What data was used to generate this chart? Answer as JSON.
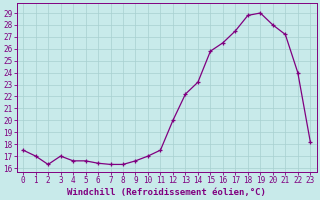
{
  "x": [
    0,
    1,
    2,
    3,
    4,
    5,
    6,
    7,
    8,
    9,
    10,
    11,
    12,
    13,
    14,
    15,
    16,
    17,
    18,
    19,
    20,
    21,
    22,
    23
  ],
  "y": [
    17.5,
    17.0,
    16.3,
    17.0,
    16.6,
    16.6,
    16.4,
    16.3,
    16.3,
    16.6,
    17.0,
    17.5,
    20.0,
    22.2,
    23.2,
    25.8,
    26.5,
    27.5,
    28.8,
    29.0,
    28.0,
    27.2,
    24.0,
    18.2
  ],
  "line_color": "#800080",
  "background_color": "#c8eaea",
  "grid_color": "#a8d0d0",
  "xlabel": "Windchill (Refroidissement éolien,°C)",
  "xlabel_fontsize": 6.5,
  "ylim": [
    15.7,
    29.8
  ],
  "xlim": [
    -0.5,
    23.5
  ],
  "yticks": [
    16,
    17,
    18,
    19,
    20,
    21,
    22,
    23,
    24,
    25,
    26,
    27,
    28,
    29
  ],
  "tick_fontsize": 5.5,
  "linewidth": 0.9,
  "markersize": 2.5
}
